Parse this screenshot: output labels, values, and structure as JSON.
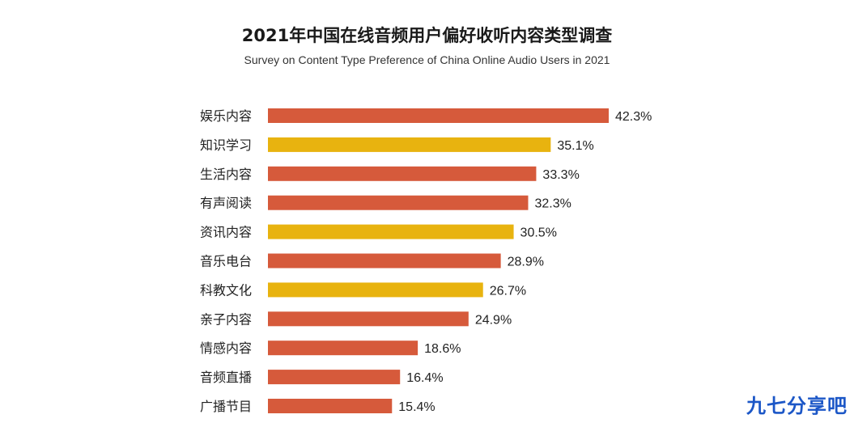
{
  "header": {
    "title": "2021年中国在线音频用户偏好收听内容类型调查",
    "subtitle": "Survey on Content Type Preference of China Online Audio Users in 2021"
  },
  "watermark": "九七分享吧",
  "colors": {
    "red": "#d65a3b",
    "yellow": "#e8b30f"
  },
  "chart_data": {
    "type": "bar",
    "orientation": "horizontal",
    "title": "2021年中国在线音频用户偏好收听内容类型调查",
    "subtitle": "Survey on Content Type Preference of China Online Audio Users in 2021",
    "categories": [
      "娱乐内容",
      "知识学习",
      "生活内容",
      "有声阅读",
      "资讯内容",
      "音乐电台",
      "科教文化",
      "亲子内容",
      "情感内容",
      "音频直播",
      "广播节目"
    ],
    "values": [
      42.3,
      35.1,
      33.3,
      32.3,
      30.5,
      28.9,
      26.7,
      24.9,
      18.6,
      16.4,
      15.4
    ],
    "value_labels": [
      "42.3%",
      "35.1%",
      "33.3%",
      "32.3%",
      "30.5%",
      "28.9%",
      "26.7%",
      "24.9%",
      "18.6%",
      "16.4%",
      "15.4%"
    ],
    "bar_colors": [
      "red",
      "yellow",
      "red",
      "red",
      "yellow",
      "red",
      "yellow",
      "red",
      "red",
      "red",
      "red"
    ],
    "xlim": [
      0,
      42.3
    ],
    "grid": false,
    "legend": "none"
  }
}
